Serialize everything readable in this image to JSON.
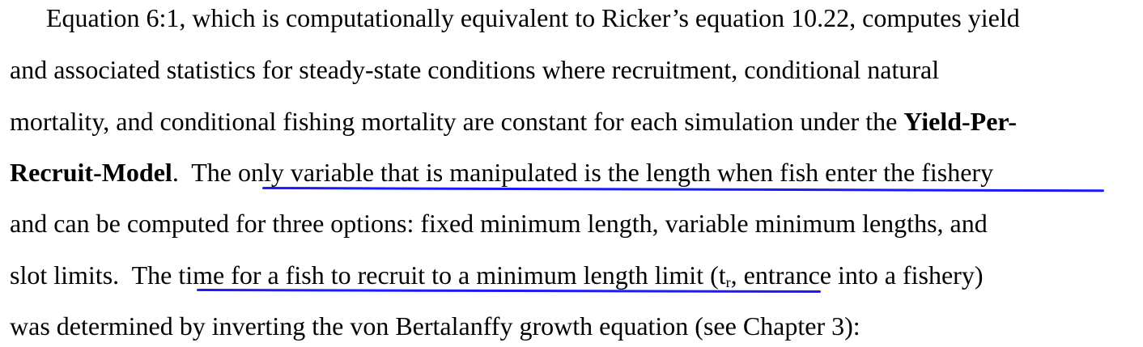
{
  "paragraph": {
    "line1": "Equation 6:1, which is computationally equivalent to Ricker’s equation 10.22, computes yield",
    "line2": "and associated statistics for steady-state conditions where recruitment, conditional natural",
    "line3_text": "mortality, and conditional fishing mortality are constant for each simulation under the ",
    "line3_bold": "Yield-Per-",
    "line4_bold": "Recruit-Model",
    "line4_text_a": ".  The ",
    "line4_underlined": "only variable that is manipulated is the length when fish enter the fishery",
    "line5": "and can be computed for three options: fixed minimum length, variable minimum lengths, and",
    "line6_text_a": "slot limits.  The ",
    "line6_underlined": "time for a fish to recruit to a minimum length limit (t",
    "line6_sub": "r",
    "line6_underlined_end": ",",
    "line6_text_b": " entrance into a fishery)",
    "line7": "was determined by inverting the von Bertalanffy growth equation (see Chapter 3):"
  },
  "colors": {
    "text": "#000000",
    "annotation_underline": "#1a1aff",
    "background": "#ffffff"
  }
}
